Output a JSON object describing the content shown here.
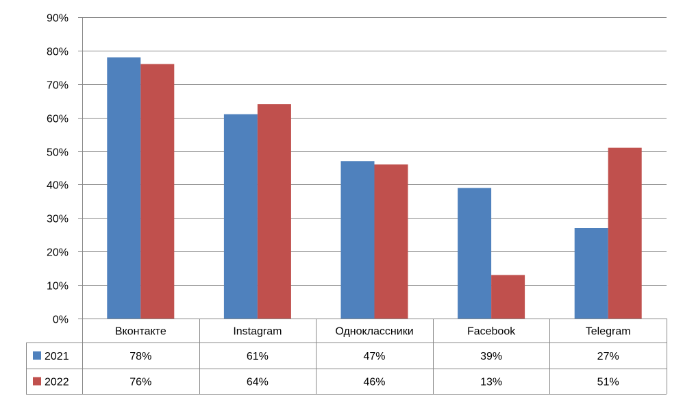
{
  "chart_data": {
    "type": "bar",
    "title": "",
    "xlabel": "",
    "ylabel": "",
    "categories": [
      "Вконтакте",
      "Instagram",
      "Одноклассники",
      "Facebook",
      "Telegram"
    ],
    "series": [
      {
        "name": "2021",
        "color": "#4f81bd",
        "values": [
          78,
          61,
          47,
          39,
          27
        ],
        "labels": [
          "78%",
          "61%",
          "47%",
          "39%",
          "27%"
        ]
      },
      {
        "name": "2022",
        "color": "#c0504d",
        "values": [
          76,
          64,
          46,
          13,
          51
        ],
        "labels": [
          "76%",
          "64%",
          "46%",
          "13%",
          "51%"
        ]
      }
    ],
    "ylim": [
      0,
      90
    ],
    "yticks": [
      0,
      10,
      20,
      30,
      40,
      50,
      60,
      70,
      80,
      90
    ],
    "ytick_labels": [
      "0%",
      "10%",
      "20%",
      "30%",
      "40%",
      "50%",
      "60%",
      "70%",
      "80%",
      "90%"
    ],
    "grid": true,
    "legend": "data-table-left"
  }
}
